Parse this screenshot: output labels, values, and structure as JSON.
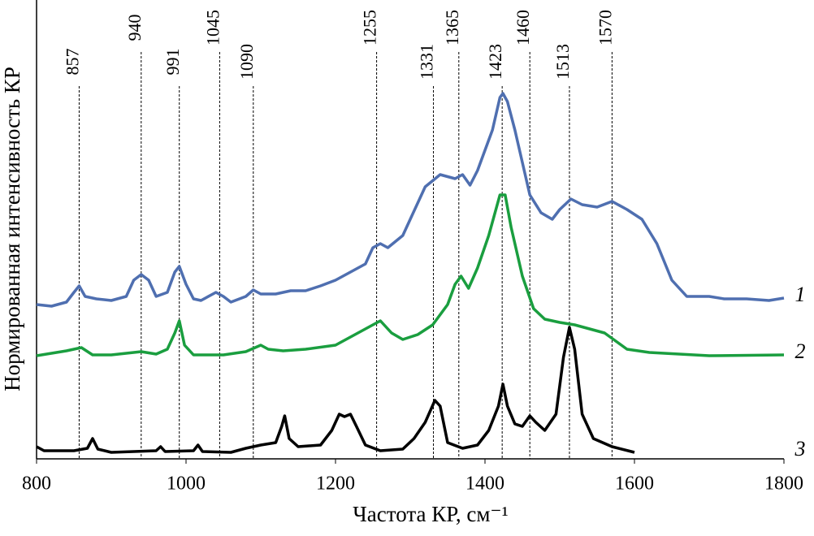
{
  "chart_data": {
    "type": "line",
    "xlabel": "Частота КР, см⁻¹",
    "ylabel": "Нормированная интенсивность КР",
    "xlim": [
      800,
      1800
    ],
    "xticks": [
      800,
      1000,
      1200,
      1400,
      1600,
      1800
    ],
    "ylim": [
      0,
      113
    ],
    "annotations": [
      "857",
      "940",
      "991",
      "1045",
      "1090",
      "1255",
      "1331",
      "1365",
      "1423",
      "1460",
      "1513",
      "1570"
    ],
    "annotation_x": [
      857,
      940,
      991,
      1045,
      1090,
      1255,
      1331,
      1365,
      1423,
      1460,
      1513,
      1570
    ],
    "series": [
      {
        "name": "1",
        "color": "#4f6fb0",
        "x": [
          800,
          820,
          840,
          850,
          857,
          865,
          880,
          900,
          920,
          930,
          940,
          950,
          960,
          975,
          985,
          991,
          1000,
          1010,
          1020,
          1040,
          1050,
          1060,
          1080,
          1090,
          1100,
          1120,
          1140,
          1160,
          1180,
          1200,
          1220,
          1240,
          1250,
          1260,
          1270,
          1290,
          1300,
          1320,
          1340,
          1360,
          1370,
          1380,
          1390,
          1400,
          1410,
          1420,
          1424,
          1430,
          1440,
          1450,
          1460,
          1475,
          1490,
          1500,
          1515,
          1530,
          1550,
          1570,
          1590,
          1610,
          1630,
          1650,
          1670,
          1700,
          1720,
          1750,
          1780,
          1800
        ],
        "values": [
          38,
          37.6,
          38.6,
          41,
          42.6,
          40,
          39.4,
          39,
          40,
          44,
          45.4,
          44,
          40,
          41,
          46,
          47.4,
          43,
          39.4,
          39,
          41,
          40,
          38.6,
          40,
          41.6,
          40.6,
          40.6,
          41.4,
          41.4,
          42.6,
          44,
          46,
          48,
          52,
          53,
          52,
          55,
          59,
          67,
          70,
          69,
          70,
          67.4,
          71,
          76,
          81,
          89,
          90,
          88,
          81,
          73,
          65,
          60.6,
          59,
          61.4,
          64,
          62.6,
          62,
          63.4,
          61.4,
          59,
          53,
          44,
          40,
          40,
          39.4,
          39.4,
          39,
          39.6
        ]
      },
      {
        "name": "2",
        "color": "#1a9e3f",
        "x": [
          800,
          840,
          860,
          875,
          900,
          940,
          960,
          975,
          985,
          991,
          998,
          1010,
          1050,
          1080,
          1100,
          1110,
          1130,
          1160,
          1200,
          1220,
          1240,
          1260,
          1275,
          1290,
          1310,
          1330,
          1350,
          1360,
          1368,
          1378,
          1390,
          1405,
          1420,
          1427,
          1435,
          1450,
          1465,
          1480,
          1500,
          1520,
          1540,
          1560,
          1575,
          1590,
          1620,
          1700,
          1800
        ],
        "values": [
          25.4,
          26.6,
          27.4,
          25.6,
          25.6,
          26.4,
          25.8,
          27,
          31,
          34,
          28,
          25.6,
          25.6,
          26.4,
          28,
          27,
          26.6,
          27,
          28,
          30,
          32,
          34,
          31,
          29.4,
          30.6,
          33,
          38,
          43,
          45,
          42,
          47,
          55,
          65,
          65,
          57,
          45,
          37,
          34.4,
          33.6,
          33,
          32,
          31,
          29,
          27,
          26.2,
          25.4,
          25.6
        ]
      },
      {
        "name": "3",
        "color": "#000000",
        "x": [
          800,
          810,
          850,
          868,
          875,
          882,
          900,
          960,
          966,
          972,
          1010,
          1016,
          1022,
          1060,
          1080,
          1100,
          1120,
          1128,
          1132,
          1138,
          1150,
          1180,
          1195,
          1205,
          1212,
          1220,
          1228,
          1240,
          1260,
          1290,
          1305,
          1320,
          1333,
          1340,
          1350,
          1370,
          1390,
          1405,
          1418,
          1424,
          1430,
          1440,
          1450,
          1460,
          1468,
          1480,
          1495,
          1505,
          1513,
          1520,
          1530,
          1545,
          1570,
          1600
        ],
        "values": [
          3,
          2,
          2,
          2.6,
          5,
          2.4,
          1.6,
          2,
          3,
          1.8,
          2,
          3.4,
          1.8,
          1.6,
          2.6,
          3.4,
          4,
          8,
          10.6,
          5,
          3,
          3.4,
          7,
          11,
          10.4,
          11,
          8,
          3.4,
          2,
          2.4,
          5,
          9,
          14.4,
          13,
          4,
          2.6,
          3.4,
          7,
          13,
          18.4,
          13,
          8.6,
          8,
          10.6,
          9,
          7,
          11,
          25,
          32.4,
          27,
          11,
          5,
          3,
          1.6
        ]
      }
    ]
  }
}
